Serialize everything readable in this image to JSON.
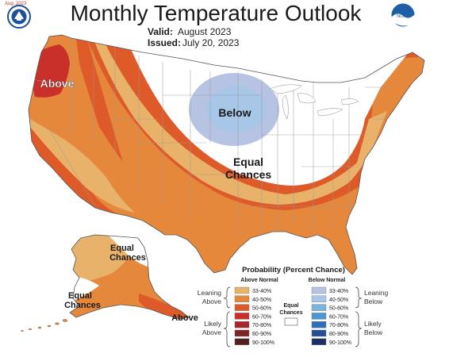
{
  "header": {
    "title": "Monthly Temperature Outlook",
    "valid_label": "Valid:",
    "valid_value": "August 2023",
    "issued_label": "Issued:",
    "issued_value": "July 20, 2023",
    "logo_left_text": "Aug. 2023",
    "logo_right_text": "NOAA"
  },
  "map_labels": {
    "above_west": "Above",
    "below": "Below",
    "equal_chances_line1": "Equal",
    "equal_chances_line2": "Chances",
    "alaska_ec_top_line1": "Equal",
    "alaska_ec_top_line2": "Chances",
    "alaska_ec_left_line1": "Equal",
    "alaska_ec_left_line2": "Chances",
    "alaska_above": "Above"
  },
  "legend": {
    "title": "Probability (Percent Chance)",
    "above_header": "Above Normal",
    "below_header": "Below Normal",
    "leaning_above_line1": "Leaning",
    "leaning_above_line2": "Above",
    "likely_above_line1": "Likely",
    "likely_above_line2": "Above",
    "leaning_below_line1": "Leaning",
    "leaning_below_line2": "Below",
    "likely_below_line1": "Likely",
    "likely_below_line2": "Below",
    "equal_line1": "Equal",
    "equal_line2": "Chances",
    "above_ranges": [
      "33-40%",
      "40-50%",
      "50-60%",
      "60-70%",
      "70-80%",
      "80-90%",
      "90-100%"
    ],
    "below_ranges": [
      "33-40%",
      "40-50%",
      "50-60%",
      "60-70%",
      "70-80%",
      "80-90%",
      "90-100%"
    ],
    "above_colors": [
      "#e8b26a",
      "#e6883c",
      "#de5a28",
      "#c9302a",
      "#a8262a",
      "#7e2424",
      "#551f1f"
    ],
    "below_colors": [
      "#b7c3e3",
      "#a7c6e8",
      "#79b4e0",
      "#4a97d3",
      "#2c6fb8",
      "#244f98",
      "#1c2f6a"
    ]
  },
  "colors": {
    "above_33_40": "#e8b26a",
    "above_40_50": "#e6883c",
    "above_50_60": "#de5a28",
    "above_60_70": "#c9302a",
    "below_33_40": "#b7c3e3",
    "below_40_50": "#a7c6e8",
    "title_color": "#1a1a1a"
  }
}
